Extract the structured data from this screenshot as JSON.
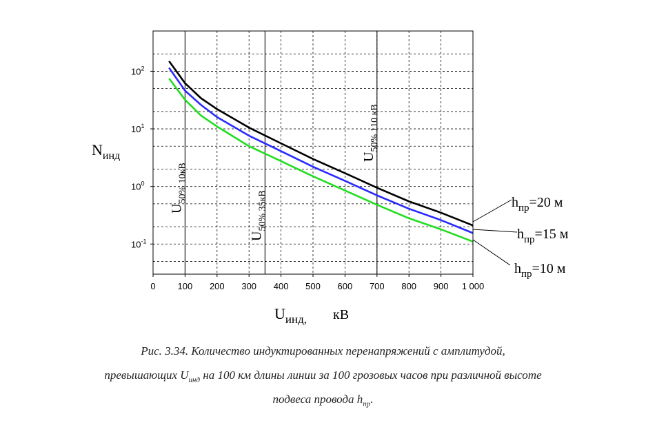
{
  "chart_data": {
    "type": "line",
    "y_scale": "log",
    "xlim": [
      0,
      1000
    ],
    "ylim": [
      0.03,
      500
    ],
    "x_ticks": [
      0,
      100,
      200,
      300,
      400,
      500,
      600,
      700,
      800,
      900,
      1000
    ],
    "x_tick_labels": [
      "0",
      "100",
      "200",
      "300",
      "400",
      "500",
      "600",
      "700",
      "800",
      "900",
      "1 000"
    ],
    "y_tick_labels": [
      {
        "value": 100,
        "base": "10",
        "exp": "2"
      },
      {
        "value": 10,
        "base": "10",
        "exp": "1"
      },
      {
        "value": 1,
        "base": "10",
        "exp": "0"
      },
      {
        "value": 0.1,
        "base": "10",
        "exp": "-1"
      }
    ],
    "y_grid": [
      0.05,
      0.1,
      0.2,
      0.5,
      1,
      2,
      5,
      10,
      20,
      50,
      100,
      200
    ],
    "grid": true,
    "ylabel": {
      "main": "N",
      "sub": "инд"
    },
    "xlabel": {
      "main": "U",
      "sub": "инд,",
      "unit": "кВ"
    },
    "x": [
      50,
      100,
      150,
      200,
      300,
      400,
      500,
      600,
      700,
      800,
      900,
      1000
    ],
    "series": [
      {
        "name": "h пр =20 м",
        "label_main": "h",
        "label_sub": "пр",
        "label_tail": "=20 м",
        "color": "#000000",
        "values": [
          150,
          62,
          34,
          22,
          10.5,
          5.6,
          3.0,
          1.7,
          0.95,
          0.55,
          0.35,
          0.21
        ]
      },
      {
        "name": "h пр =15 м",
        "label_main": "h",
        "label_sub": "пр",
        "label_tail": "=15 м",
        "color": "#2a2aff",
        "values": [
          115,
          46,
          26,
          16,
          7.6,
          4.1,
          2.2,
          1.25,
          0.7,
          0.41,
          0.26,
          0.155
        ]
      },
      {
        "name": "h пр =10 м",
        "label_main": "h",
        "label_sub": "пр",
        "label_tail": "=10 м",
        "color": "#22dd22",
        "values": [
          75,
          32,
          17,
          11,
          5.0,
          2.75,
          1.5,
          0.85,
          0.48,
          0.28,
          0.18,
          0.11
        ]
      }
    ],
    "vlines": [
      {
        "x": 100,
        "main": "U",
        "sub": "50% 10кВ"
      },
      {
        "x": 350,
        "main": "U",
        "sub": "50% 35кВ"
      },
      {
        "x": 700,
        "main": "U",
        "sub": "50% 110 кВ"
      }
    ]
  },
  "caption": {
    "line1": "Рис. 3.34. Количество индуктированных перенапряжений с амплитудой,",
    "line2_a": "превышающих U",
    "line2_sub": "инд",
    "line2_b": " на 100 км длины линии за 100 грозовых часов при различной высоте",
    "line3_a": "подвеса провода h",
    "line3_sub": "пр",
    "line3_b": "."
  }
}
